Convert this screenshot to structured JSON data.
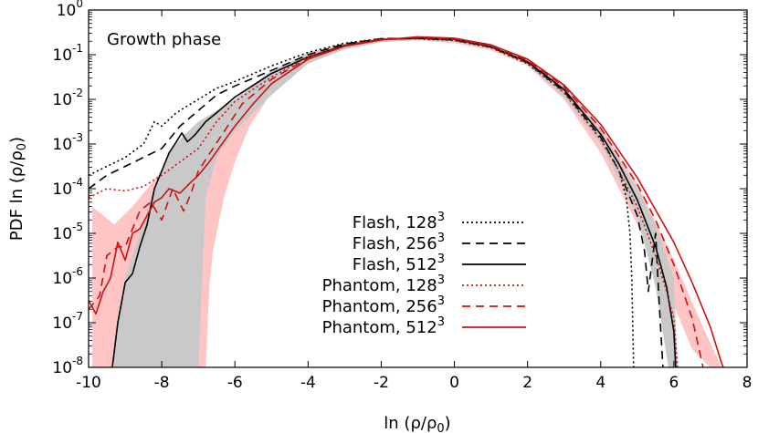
{
  "chart_data": {
    "type": "line",
    "annotation": "Growth phase",
    "xlabel": "ln (ρ/ρ",
    "xlabel_sub": "0",
    "xlabel_close": ")",
    "ylabel": "PDF ln (ρ/ρ",
    "ylabel_sub": "0",
    "ylabel_close": ")",
    "xlim": [
      -10,
      8
    ],
    "ylim_log10": [
      -8,
      0
    ],
    "y_scale": "log",
    "grid": false,
    "legend_position": "bottom-center",
    "x_ticks": [
      {
        "value": -10,
        "label": "-10"
      },
      {
        "value": -8,
        "label": "-8"
      },
      {
        "value": -6,
        "label": "-6"
      },
      {
        "value": -4,
        "label": "-4"
      },
      {
        "value": -2,
        "label": "-2"
      },
      {
        "value": 0,
        "label": "0"
      },
      {
        "value": 2,
        "label": "2"
      },
      {
        "value": 4,
        "label": "4"
      },
      {
        "value": 6,
        "label": "6"
      },
      {
        "value": 8,
        "label": "8"
      }
    ],
    "y_ticks": [
      {
        "exp": 0,
        "base": "10",
        "sup": "0"
      },
      {
        "exp": -1,
        "base": "10",
        "sup": "-1"
      },
      {
        "exp": -2,
        "base": "10",
        "sup": "-2"
      },
      {
        "exp": -3,
        "base": "10",
        "sup": "-3"
      },
      {
        "exp": -4,
        "base": "10",
        "sup": "-4"
      },
      {
        "exp": -5,
        "base": "10",
        "sup": "-5"
      },
      {
        "exp": -6,
        "base": "10",
        "sup": "-6"
      },
      {
        "exp": -7,
        "base": "10",
        "sup": "-7"
      },
      {
        "exp": -8,
        "base": "10",
        "sup": "-8"
      }
    ],
    "bands": [
      {
        "name": "Phantom spread",
        "color": "#ffc4c4",
        "upper": [
          [
            -9.9,
            -4.4
          ],
          [
            -9.6,
            -4.6
          ],
          [
            -9.3,
            -4.8
          ],
          [
            -8.8,
            -4.4
          ],
          [
            -8.4,
            -4.0
          ],
          [
            -8.0,
            -3.6
          ],
          [
            -7.6,
            -3.3
          ],
          [
            -7.2,
            -3.0
          ],
          [
            -6.8,
            -2.8
          ],
          [
            -6.0,
            -2.0
          ],
          [
            -5.0,
            -1.4
          ],
          [
            -4.0,
            -0.95
          ],
          [
            -3.0,
            -0.75
          ],
          [
            -2.0,
            -0.64
          ],
          [
            -1.0,
            -0.62
          ],
          [
            0.0,
            -0.67
          ],
          [
            1.0,
            -0.82
          ],
          [
            2.0,
            -1.15
          ],
          [
            3.0,
            -1.7
          ],
          [
            4.0,
            -2.6
          ],
          [
            5.0,
            -3.9
          ],
          [
            6.0,
            -5.6
          ],
          [
            6.8,
            -7.1
          ],
          [
            7.3,
            -8.0
          ]
        ],
        "lower": [
          [
            7.0,
            -8.0
          ],
          [
            6.5,
            -7.6
          ],
          [
            6.0,
            -6.6
          ],
          [
            5.0,
            -4.8
          ],
          [
            4.0,
            -3.2
          ],
          [
            3.0,
            -2.0
          ],
          [
            2.0,
            -1.25
          ],
          [
            1.0,
            -0.9
          ],
          [
            0.0,
            -0.74
          ],
          [
            -1.0,
            -0.68
          ],
          [
            -2.0,
            -0.7
          ],
          [
            -3.0,
            -0.85
          ],
          [
            -4.0,
            -1.15
          ],
          [
            -5.0,
            -1.85
          ],
          [
            -5.6,
            -2.6
          ],
          [
            -6.0,
            -3.4
          ],
          [
            -6.3,
            -4.2
          ],
          [
            -6.6,
            -5.4
          ],
          [
            -6.7,
            -6.2
          ],
          [
            -6.8,
            -8.0
          ],
          [
            -9.9,
            -8.0
          ]
        ]
      },
      {
        "name": "Flash spread",
        "color": "#c9c9c9",
        "upper": [
          [
            -9.3,
            -7.5
          ],
          [
            -9.0,
            -6.0
          ],
          [
            -8.6,
            -5.0
          ],
          [
            -8.2,
            -4.0
          ],
          [
            -7.8,
            -3.2
          ],
          [
            -7.4,
            -2.8
          ],
          [
            -7.0,
            -2.5
          ],
          [
            -6.0,
            -2.0
          ],
          [
            -5.0,
            -1.35
          ],
          [
            -4.0,
            -0.98
          ],
          [
            -3.0,
            -0.75
          ],
          [
            -2.0,
            -0.64
          ],
          [
            -1.0,
            -0.6
          ],
          [
            0.0,
            -0.64
          ],
          [
            1.0,
            -0.8
          ],
          [
            2.0,
            -1.1
          ],
          [
            3.0,
            -1.7
          ],
          [
            4.0,
            -2.7
          ],
          [
            5.0,
            -4.0
          ],
          [
            5.5,
            -4.8
          ],
          [
            6.0,
            -6.0
          ],
          [
            6.1,
            -8.0
          ]
        ],
        "lower": [
          [
            5.85,
            -8.0
          ],
          [
            5.5,
            -6.2
          ],
          [
            5.0,
            -4.6
          ],
          [
            4.0,
            -3.0
          ],
          [
            3.0,
            -1.95
          ],
          [
            2.0,
            -1.22
          ],
          [
            1.0,
            -0.86
          ],
          [
            0.0,
            -0.72
          ],
          [
            -1.0,
            -0.68
          ],
          [
            -2.0,
            -0.72
          ],
          [
            -3.0,
            -0.88
          ],
          [
            -4.0,
            -1.2
          ],
          [
            -5.0,
            -1.9
          ],
          [
            -6.0,
            -2.7
          ],
          [
            -6.5,
            -3.3
          ],
          [
            -6.8,
            -4.2
          ],
          [
            -7.0,
            -8.0
          ],
          [
            -9.3,
            -8.0
          ]
        ]
      }
    ],
    "series": [
      {
        "name": "Flash, 128",
        "sup": "3",
        "color": "#000000",
        "dash": "2,3",
        "points": [
          [
            -10.0,
            -3.7
          ],
          [
            -9.5,
            -3.5
          ],
          [
            -9.0,
            -3.3
          ],
          [
            -8.5,
            -3.0
          ],
          [
            -8.2,
            -2.5
          ],
          [
            -8.0,
            -2.6
          ],
          [
            -7.6,
            -2.3
          ],
          [
            -7.0,
            -2.0
          ],
          [
            -6.5,
            -1.75
          ],
          [
            -6.0,
            -1.6
          ],
          [
            -5.0,
            -1.25
          ],
          [
            -4.0,
            -0.95
          ],
          [
            -3.0,
            -0.74
          ],
          [
            -2.0,
            -0.64
          ],
          [
            -1.0,
            -0.64
          ],
          [
            0.0,
            -0.68
          ],
          [
            1.0,
            -0.84
          ],
          [
            2.0,
            -1.2
          ],
          [
            3.0,
            -1.85
          ],
          [
            4.0,
            -2.9
          ],
          [
            4.5,
            -3.6
          ],
          [
            4.7,
            -4.2
          ],
          [
            4.8,
            -5.0
          ],
          [
            4.85,
            -6.0
          ],
          [
            4.9,
            -8.0
          ]
        ]
      },
      {
        "name": "Flash, 256",
        "sup": "3",
        "color": "#000000",
        "dash": "9,6",
        "points": [
          [
            -10.0,
            -4.0
          ],
          [
            -9.5,
            -3.7
          ],
          [
            -9.0,
            -3.5
          ],
          [
            -8.5,
            -3.3
          ],
          [
            -8.0,
            -3.1
          ],
          [
            -7.5,
            -2.6
          ],
          [
            -7.0,
            -2.25
          ],
          [
            -6.5,
            -1.9
          ],
          [
            -6.0,
            -1.7
          ],
          [
            -5.0,
            -1.35
          ],
          [
            -4.0,
            -1.0
          ],
          [
            -3.0,
            -0.76
          ],
          [
            -2.0,
            -0.64
          ],
          [
            -1.0,
            -0.63
          ],
          [
            0.0,
            -0.67
          ],
          [
            1.0,
            -0.83
          ],
          [
            2.0,
            -1.18
          ],
          [
            3.0,
            -1.82
          ],
          [
            4.0,
            -2.85
          ],
          [
            4.5,
            -3.6
          ],
          [
            5.0,
            -4.6
          ],
          [
            5.2,
            -5.4
          ],
          [
            5.3,
            -6.3
          ],
          [
            5.5,
            -5.0
          ],
          [
            5.6,
            -6.6
          ],
          [
            5.7,
            -8.0
          ]
        ]
      },
      {
        "name": "Flash, 512",
        "sup": "3",
        "color": "#000000",
        "dash": "",
        "points": [
          [
            -9.35,
            -8.0
          ],
          [
            -9.2,
            -7.0
          ],
          [
            -9.0,
            -6.1
          ],
          [
            -8.8,
            -5.9
          ],
          [
            -8.6,
            -5.3
          ],
          [
            -8.4,
            -4.8
          ],
          [
            -8.2,
            -4.0
          ],
          [
            -8.0,
            -3.6
          ],
          [
            -7.8,
            -3.2
          ],
          [
            -7.6,
            -2.95
          ],
          [
            -7.45,
            -2.75
          ],
          [
            -7.3,
            -2.95
          ],
          [
            -7.1,
            -2.8
          ],
          [
            -6.8,
            -2.5
          ],
          [
            -6.5,
            -2.3
          ],
          [
            -6.0,
            -1.95
          ],
          [
            -5.0,
            -1.42
          ],
          [
            -4.0,
            -1.05
          ],
          [
            -3.0,
            -0.79
          ],
          [
            -2.0,
            -0.66
          ],
          [
            -1.0,
            -0.63
          ],
          [
            0.0,
            -0.66
          ],
          [
            1.0,
            -0.82
          ],
          [
            2.0,
            -1.16
          ],
          [
            3.0,
            -1.78
          ],
          [
            4.0,
            -2.78
          ],
          [
            4.5,
            -3.45
          ],
          [
            5.0,
            -4.25
          ],
          [
            5.5,
            -5.3
          ],
          [
            5.8,
            -6.2
          ],
          [
            6.0,
            -7.2
          ],
          [
            6.05,
            -8.0
          ]
        ]
      },
      {
        "name": "Phantom, 128",
        "sup": "3",
        "color": "#cc1111",
        "dash": "2,3",
        "points": [
          [
            -10.0,
            -4.2
          ],
          [
            -9.5,
            -4.0
          ],
          [
            -9.0,
            -4.05
          ],
          [
            -8.5,
            -3.95
          ],
          [
            -8.0,
            -3.7
          ],
          [
            -7.5,
            -3.4
          ],
          [
            -7.0,
            -3.1
          ],
          [
            -6.5,
            -2.5
          ],
          [
            -6.0,
            -2.05
          ],
          [
            -5.0,
            -1.5
          ],
          [
            -4.0,
            -1.05
          ],
          [
            -3.0,
            -0.79
          ],
          [
            -2.0,
            -0.65
          ],
          [
            -1.0,
            -0.62
          ],
          [
            0.0,
            -0.66
          ],
          [
            1.0,
            -0.82
          ],
          [
            2.0,
            -1.18
          ],
          [
            3.0,
            -1.85
          ],
          [
            4.0,
            -2.9
          ],
          [
            4.5,
            -3.6
          ],
          [
            5.0,
            -4.4
          ],
          [
            5.5,
            -5.5
          ],
          [
            5.8,
            -6.3
          ],
          [
            6.0,
            -6.9
          ],
          [
            6.1,
            -8.0
          ]
        ]
      },
      {
        "name": "Phantom, 256",
        "sup": "3",
        "color": "#cc1111",
        "dash": "9,6",
        "points": [
          [
            -10.0,
            -6.7
          ],
          [
            -9.7,
            -6.4
          ],
          [
            -9.5,
            -5.5
          ],
          [
            -9.2,
            -5.3
          ],
          [
            -9.0,
            -5.3
          ],
          [
            -8.6,
            -4.5
          ],
          [
            -8.3,
            -4.3
          ],
          [
            -8.0,
            -4.7
          ],
          [
            -7.7,
            -4.0
          ],
          [
            -7.4,
            -4.5
          ],
          [
            -7.2,
            -4.1
          ],
          [
            -7.0,
            -3.6
          ],
          [
            -6.6,
            -3.1
          ],
          [
            -6.2,
            -2.6
          ],
          [
            -5.8,
            -2.1
          ],
          [
            -5.0,
            -1.55
          ],
          [
            -4.0,
            -1.08
          ],
          [
            -3.0,
            -0.8
          ],
          [
            -2.0,
            -0.66
          ],
          [
            -1.0,
            -0.62
          ],
          [
            0.0,
            -0.65
          ],
          [
            1.0,
            -0.8
          ],
          [
            2.0,
            -1.13
          ],
          [
            3.0,
            -1.72
          ],
          [
            4.0,
            -2.65
          ],
          [
            5.0,
            -3.9
          ],
          [
            5.5,
            -4.7
          ],
          [
            6.0,
            -5.7
          ],
          [
            6.5,
            -6.9
          ],
          [
            6.8,
            -8.0
          ]
        ]
      },
      {
        "name": "Phantom, 512",
        "sup": "3",
        "color": "#cc1111",
        "dash": "",
        "points": [
          [
            -10.0,
            -6.5
          ],
          [
            -9.8,
            -6.8
          ],
          [
            -9.6,
            -6.3
          ],
          [
            -9.4,
            -6.0
          ],
          [
            -9.2,
            -5.2
          ],
          [
            -9.0,
            -5.6
          ],
          [
            -8.8,
            -5.0
          ],
          [
            -8.6,
            -4.9
          ],
          [
            -8.4,
            -4.6
          ],
          [
            -8.2,
            -4.3
          ],
          [
            -8.0,
            -4.2
          ],
          [
            -7.8,
            -4.0
          ],
          [
            -7.5,
            -4.1
          ],
          [
            -7.2,
            -3.85
          ],
          [
            -7.0,
            -3.7
          ],
          [
            -6.7,
            -3.4
          ],
          [
            -6.4,
            -3.05
          ],
          [
            -6.0,
            -2.6
          ],
          [
            -5.5,
            -2.1
          ],
          [
            -5.0,
            -1.65
          ],
          [
            -4.0,
            -1.1
          ],
          [
            -3.0,
            -0.81
          ],
          [
            -2.0,
            -0.67
          ],
          [
            -1.0,
            -0.6
          ],
          [
            0.0,
            -0.63
          ],
          [
            1.0,
            -0.78
          ],
          [
            2.0,
            -1.1
          ],
          [
            3.0,
            -1.68
          ],
          [
            4.0,
            -2.56
          ],
          [
            5.0,
            -3.75
          ],
          [
            6.0,
            -5.2
          ],
          [
            6.5,
            -6.1
          ],
          [
            7.0,
            -7.1
          ],
          [
            7.3,
            -7.9
          ],
          [
            7.35,
            -8.0
          ]
        ]
      }
    ]
  }
}
